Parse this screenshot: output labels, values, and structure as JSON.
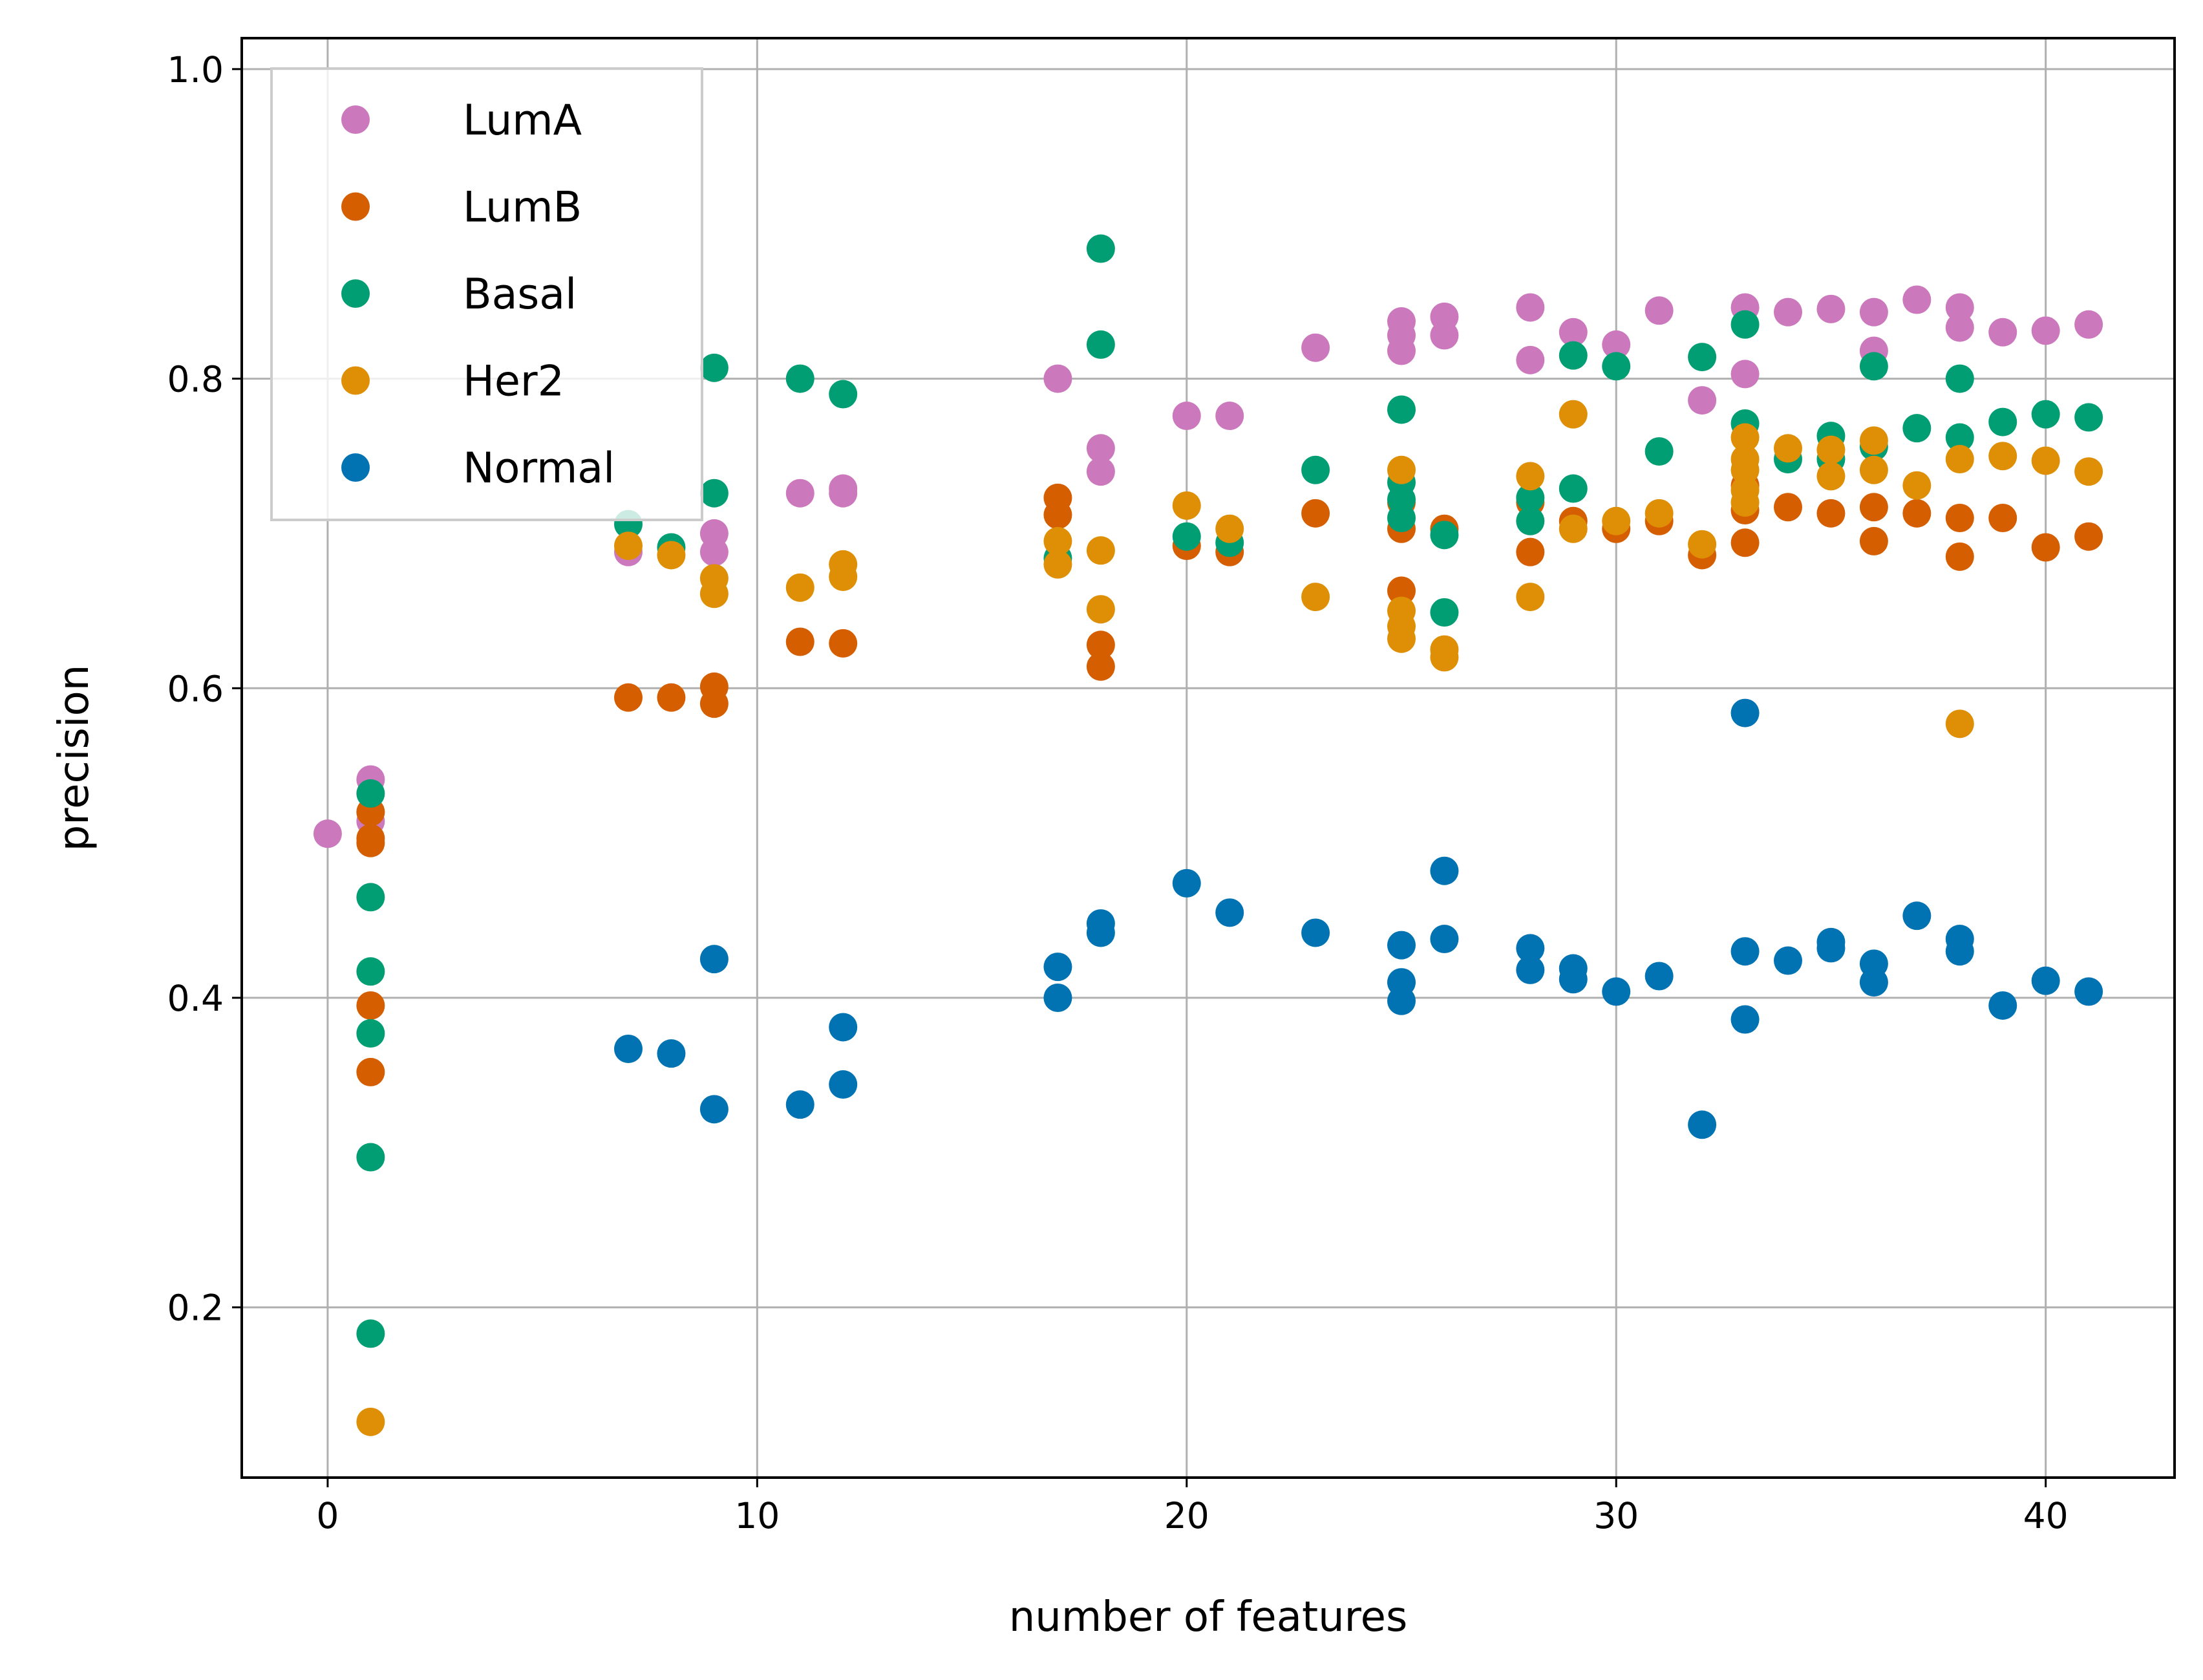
{
  "chart_data": {
    "type": "scatter",
    "xlabel": "number of features",
    "ylabel": "precision",
    "xlim": [
      -2,
      43
    ],
    "ylim": [
      0.09,
      1.02
    ],
    "xticks": [
      0,
      10,
      20,
      30,
      40
    ],
    "yticks": [
      0.2,
      0.4,
      0.6,
      0.8,
      1.0
    ],
    "xtick_labels": [
      "0",
      "10",
      "20",
      "30",
      "40"
    ],
    "ytick_labels": [
      "0.2",
      "0.4",
      "0.6",
      "0.8",
      "1.0"
    ],
    "grid": true,
    "legend_position": "upper-left",
    "series": [
      {
        "name": "LumA",
        "color": "#cc78bc",
        "points": [
          [
            0,
            0.506
          ],
          [
            1,
            0.541
          ],
          [
            1,
            0.52
          ],
          [
            1,
            0.514
          ],
          [
            7,
            0.688
          ],
          [
            9,
            0.7
          ],
          [
            9,
            0.688
          ],
          [
            11,
            0.726
          ],
          [
            12,
            0.729
          ],
          [
            12,
            0.726
          ],
          [
            17,
            0.8
          ],
          [
            18,
            0.755
          ],
          [
            18,
            0.74
          ],
          [
            20,
            0.776
          ],
          [
            21,
            0.776
          ],
          [
            23,
            0.82
          ],
          [
            25,
            0.837
          ],
          [
            25,
            0.828
          ],
          [
            25,
            0.818
          ],
          [
            26,
            0.84
          ],
          [
            26,
            0.828
          ],
          [
            28,
            0.846
          ],
          [
            28,
            0.812
          ],
          [
            29,
            0.83
          ],
          [
            30,
            0.822
          ],
          [
            31,
            0.844
          ],
          [
            32,
            0.786
          ],
          [
            33,
            0.846
          ],
          [
            33,
            0.803
          ],
          [
            34,
            0.843
          ],
          [
            35,
            0.845
          ],
          [
            36,
            0.843
          ],
          [
            36,
            0.818
          ],
          [
            37,
            0.851
          ],
          [
            38,
            0.846
          ],
          [
            38,
            0.833
          ],
          [
            39,
            0.83
          ],
          [
            40,
            0.831
          ],
          [
            41,
            0.835
          ]
        ]
      },
      {
        "name": "LumB",
        "color": "#d55e00",
        "points": [
          [
            1,
            0.52
          ],
          [
            1,
            0.503
          ],
          [
            1,
            0.5
          ],
          [
            1,
            0.395
          ],
          [
            1,
            0.352
          ],
          [
            7,
            0.594
          ],
          [
            8,
            0.594
          ],
          [
            9,
            0.601
          ],
          [
            9,
            0.59
          ],
          [
            11,
            0.63
          ],
          [
            12,
            0.629
          ],
          [
            17,
            0.723
          ],
          [
            17,
            0.712
          ],
          [
            18,
            0.628
          ],
          [
            18,
            0.614
          ],
          [
            20,
            0.692
          ],
          [
            21,
            0.688
          ],
          [
            23,
            0.713
          ],
          [
            25,
            0.72
          ],
          [
            25,
            0.703
          ],
          [
            25,
            0.663
          ],
          [
            26,
            0.703
          ],
          [
            28,
            0.72
          ],
          [
            28,
            0.688
          ],
          [
            29,
            0.708
          ],
          [
            30,
            0.703
          ],
          [
            31,
            0.708
          ],
          [
            32,
            0.686
          ],
          [
            33,
            0.731
          ],
          [
            33,
            0.715
          ],
          [
            33,
            0.694
          ],
          [
            34,
            0.717
          ],
          [
            35,
            0.713
          ],
          [
            36,
            0.717
          ],
          [
            36,
            0.695
          ],
          [
            37,
            0.713
          ],
          [
            38,
            0.71
          ],
          [
            38,
            0.685
          ],
          [
            39,
            0.71
          ],
          [
            40,
            0.691
          ],
          [
            41,
            0.698
          ]
        ]
      },
      {
        "name": "Basal",
        "color": "#029e73",
        "points": [
          [
            1,
            0.532
          ],
          [
            1,
            0.465
          ],
          [
            1,
            0.417
          ],
          [
            1,
            0.377
          ],
          [
            1,
            0.297
          ],
          [
            1,
            0.183
          ],
          [
            7,
            0.706
          ],
          [
            8,
            0.691
          ],
          [
            9,
            0.807
          ],
          [
            9,
            0.726
          ],
          [
            11,
            0.8
          ],
          [
            12,
            0.79
          ],
          [
            17,
            0.684
          ],
          [
            18,
            0.884
          ],
          [
            18,
            0.822
          ],
          [
            20,
            0.698
          ],
          [
            21,
            0.694
          ],
          [
            23,
            0.741
          ],
          [
            25,
            0.78
          ],
          [
            25,
            0.733
          ],
          [
            25,
            0.722
          ],
          [
            25,
            0.71
          ],
          [
            26,
            0.699
          ],
          [
            26,
            0.649
          ],
          [
            28,
            0.723
          ],
          [
            28,
            0.708
          ],
          [
            29,
            0.815
          ],
          [
            29,
            0.729
          ],
          [
            30,
            0.808
          ],
          [
            31,
            0.753
          ],
          [
            32,
            0.814
          ],
          [
            33,
            0.835
          ],
          [
            33,
            0.771
          ],
          [
            34,
            0.748
          ],
          [
            35,
            0.763
          ],
          [
            35,
            0.748
          ],
          [
            36,
            0.808
          ],
          [
            36,
            0.756
          ],
          [
            37,
            0.768
          ],
          [
            38,
            0.8
          ],
          [
            38,
            0.762
          ],
          [
            39,
            0.772
          ],
          [
            40,
            0.777
          ],
          [
            41,
            0.775
          ]
        ]
      },
      {
        "name": "Her2",
        "color": "#de8f05",
        "points": [
          [
            1,
            0.126
          ],
          [
            7,
            0.692
          ],
          [
            8,
            0.686
          ],
          [
            9,
            0.671
          ],
          [
            9,
            0.661
          ],
          [
            11,
            0.665
          ],
          [
            12,
            0.68
          ],
          [
            12,
            0.672
          ],
          [
            17,
            0.695
          ],
          [
            17,
            0.68
          ],
          [
            18,
            0.689
          ],
          [
            18,
            0.651
          ],
          [
            20,
            0.718
          ],
          [
            21,
            0.703
          ],
          [
            23,
            0.659
          ],
          [
            25,
            0.741
          ],
          [
            25,
            0.65
          ],
          [
            25,
            0.64
          ],
          [
            25,
            0.632
          ],
          [
            26,
            0.625
          ],
          [
            26,
            0.62
          ],
          [
            28,
            0.737
          ],
          [
            28,
            0.659
          ],
          [
            29,
            0.777
          ],
          [
            29,
            0.703
          ],
          [
            30,
            0.708
          ],
          [
            31,
            0.713
          ],
          [
            32,
            0.693
          ],
          [
            33,
            0.762
          ],
          [
            33,
            0.748
          ],
          [
            33,
            0.741
          ],
          [
            33,
            0.728
          ],
          [
            33,
            0.72
          ],
          [
            34,
            0.755
          ],
          [
            35,
            0.754
          ],
          [
            35,
            0.737
          ],
          [
            36,
            0.76
          ],
          [
            36,
            0.741
          ],
          [
            37,
            0.731
          ],
          [
            38,
            0.748
          ],
          [
            38,
            0.577
          ],
          [
            39,
            0.75
          ],
          [
            40,
            0.747
          ],
          [
            41,
            0.74
          ]
        ]
      },
      {
        "name": "Normal",
        "color": "#0173b2",
        "points": [
          [
            7,
            0.367
          ],
          [
            8,
            0.364
          ],
          [
            9,
            0.425
          ],
          [
            9,
            0.328
          ],
          [
            11,
            0.331
          ],
          [
            12,
            0.381
          ],
          [
            12,
            0.344
          ],
          [
            17,
            0.42
          ],
          [
            17,
            0.4
          ],
          [
            18,
            0.448
          ],
          [
            18,
            0.442
          ],
          [
            20,
            0.474
          ],
          [
            21,
            0.455
          ],
          [
            23,
            0.442
          ],
          [
            25,
            0.434
          ],
          [
            25,
            0.41
          ],
          [
            25,
            0.398
          ],
          [
            26,
            0.482
          ],
          [
            26,
            0.438
          ],
          [
            28,
            0.432
          ],
          [
            28,
            0.418
          ],
          [
            29,
            0.419
          ],
          [
            29,
            0.412
          ],
          [
            30,
            0.404
          ],
          [
            31,
            0.414
          ],
          [
            32,
            0.318
          ],
          [
            33,
            0.584
          ],
          [
            33,
            0.43
          ],
          [
            33,
            0.386
          ],
          [
            34,
            0.424
          ],
          [
            35,
            0.436
          ],
          [
            35,
            0.432
          ],
          [
            36,
            0.422
          ],
          [
            36,
            0.41
          ],
          [
            37,
            0.453
          ],
          [
            38,
            0.438
          ],
          [
            38,
            0.43
          ],
          [
            39,
            0.395
          ],
          [
            40,
            0.411
          ],
          [
            41,
            0.404
          ]
        ]
      }
    ]
  }
}
